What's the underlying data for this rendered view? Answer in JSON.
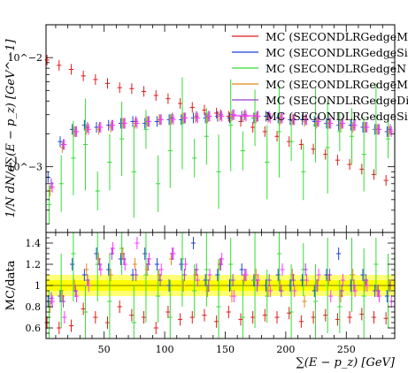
{
  "chart_data": {
    "type": "scatter",
    "xlabel": "∑(E − p_z) [GeV]",
    "upper": {
      "ylabel": "1/N dN/d∑(E − p_z) [GeV^−1]",
      "yscale": "log",
      "ylim": [
        0.00025,
        0.02
      ],
      "ytick_labels": [
        {
          "value": 0.01,
          "label": "10^−2"
        },
        {
          "value": 0.001,
          "label": "10^−3"
        }
      ]
    },
    "lower": {
      "ylabel": "MC/data",
      "ylim": [
        0.5,
        1.5
      ],
      "ytick_labels": [
        {
          "value": 0.6,
          "label": "0.6"
        },
        {
          "value": 0.8,
          "label": "0.8"
        },
        {
          "value": 1.0,
          "label": "1"
        },
        {
          "value": 1.2,
          "label": "1.2"
        },
        {
          "value": 1.4,
          "label": "1.4"
        }
      ],
      "band": {
        "low": 0.9,
        "high": 1.1,
        "inner_low": 0.95,
        "inner_high": 1.05,
        "color": "#ffff00"
      }
    },
    "xlim": [
      2,
      290
    ],
    "xtick_labels": [
      50,
      100,
      150,
      200,
      250
    ],
    "legend_position": "top-right",
    "series": [
      {
        "name": "MC (SECONDLRGedgeM",
        "color": "#e41a1c",
        "x": [
          5,
          15,
          25,
          35,
          45,
          55,
          65,
          75,
          85,
          95,
          105,
          115,
          125,
          135,
          145,
          155,
          165,
          175,
          185,
          195,
          205,
          215,
          225,
          235,
          245,
          255,
          265,
          275,
          285
        ],
        "y": [
          0.0095,
          0.0085,
          0.0078,
          0.0068,
          0.0063,
          0.0058,
          0.0053,
          0.0052,
          0.0049,
          0.0045,
          0.0042,
          0.0038,
          0.0035,
          0.0033,
          0.0031,
          0.0029,
          0.0026,
          0.0023,
          0.0021,
          0.0019,
          0.0017,
          0.0016,
          0.00145,
          0.0013,
          0.00115,
          0.00105,
          0.00095,
          0.00085,
          0.00075
        ],
        "ratio": [
          0.65,
          0.6,
          0.62,
          0.78,
          0.7,
          0.65,
          0.8,
          0.72,
          0.7,
          0.6,
          0.75,
          0.68,
          0.7,
          0.72,
          0.66,
          0.75,
          0.68,
          0.7,
          0.72,
          0.7,
          0.74,
          0.66,
          0.7,
          0.72,
          0.68,
          0.7,
          0.73,
          0.7,
          0.69
        ]
      },
      {
        "name": "MC (SECONDLRGedgeSi",
        "color": "#1f3fd8",
        "x": [
          5,
          15,
          25,
          35,
          45,
          55,
          65,
          75,
          85,
          95,
          105,
          115,
          125,
          135,
          145,
          155,
          165,
          175,
          185,
          195,
          205,
          215,
          225,
          235,
          245,
          255,
          265,
          275,
          285
        ],
        "y": [
          0.0008,
          0.0017,
          0.0022,
          0.0024,
          0.0023,
          0.0024,
          0.0025,
          0.0026,
          0.0025,
          0.0026,
          0.0027,
          0.0027,
          0.0028,
          0.0028,
          0.0029,
          0.0028,
          0.0029,
          0.0028,
          0.0029,
          0.0028,
          0.0027,
          0.0027,
          0.0026,
          0.0025,
          0.0024,
          0.0024,
          0.0023,
          0.0022,
          0.0021
        ],
        "ratio": [
          0.85,
          0.9,
          1.2,
          1.1,
          1.3,
          1.15,
          1.25,
          1.1,
          1.3,
          1.2,
          1.0,
          1.2,
          1.4,
          1.05,
          1.1,
          1.0,
          1.15,
          1.05,
          1.0,
          1.1,
          1.0,
          1.05,
          0.95,
          1.1,
          1.3,
          1.0,
          1.1,
          0.95,
          0.9
        ]
      },
      {
        "name": "MC (SECONDLRGedgeN",
        "color": "#33dd33",
        "x": [
          5,
          15,
          25,
          35,
          45,
          55,
          65,
          75,
          85,
          95,
          105,
          115,
          125,
          135,
          145,
          155,
          165,
          175,
          185,
          195,
          205,
          215,
          225,
          235,
          245,
          255,
          265,
          275,
          285
        ],
        "y": [
          0.00045,
          0.0007,
          0.0012,
          0.0016,
          0.0006,
          0.0011,
          0.0018,
          0.0009,
          0.0022,
          0.0007,
          0.0014,
          0.0025,
          0.0012,
          0.0019,
          0.0009,
          0.0024,
          0.0014,
          0.0028,
          0.0011,
          0.0021,
          0.0017,
          0.0009,
          0.0024,
          0.0015,
          0.0021,
          0.0019,
          0.0013,
          0.0022,
          0.0018
        ],
        "ratio": [
          0.7,
          0.95,
          1.3,
          0.75,
          1.2,
          0.85,
          1.35,
          0.65,
          1.1,
          0.9,
          0.7,
          1.25,
          0.95,
          1.15,
          0.8,
          1.2,
          0.7,
          1.05,
          0.9,
          1.3,
          0.75,
          1.15,
          0.85,
          1.0,
          0.8,
          1.1,
          0.9,
          1.2,
          0.95
        ]
      },
      {
        "name": "MC (SECONDLRGedgeM",
        "color": "#e08a1e",
        "x": [
          5,
          15,
          25,
          35,
          45,
          55,
          65,
          75,
          85,
          95,
          105,
          115,
          125,
          135,
          145,
          155,
          165,
          175,
          185,
          195,
          205,
          215,
          225,
          235,
          245,
          255,
          265,
          275,
          285
        ],
        "y": [
          0.0006,
          0.0015,
          0.0021,
          0.0022,
          0.0022,
          0.0023,
          0.0025,
          0.0025,
          0.0026,
          0.0027,
          0.0027,
          0.0028,
          0.0028,
          0.0028,
          0.0029,
          0.0029,
          0.0029,
          0.0028,
          0.0028,
          0.0027,
          0.0027,
          0.0026,
          0.0025,
          0.0025,
          0.0024,
          0.0023,
          0.0023,
          0.0022,
          0.0021
        ],
        "ratio": [
          0.8,
          0.9,
          1.0,
          1.15,
          1.25,
          1.1,
          1.3,
          1.2,
          1.15,
          1.1,
          1.25,
          1.0,
          1.1,
          0.95,
          1.2,
          0.9,
          1.05,
          1.1,
          0.95,
          1.0,
          1.1,
          0.85,
          1.0,
          1.05,
          0.9,
          1.1,
          1.0,
          0.95,
          1.0
        ]
      },
      {
        "name": "MC (SECONDLRGedgeDi",
        "color": "#9b3fcf",
        "x": [
          5,
          15,
          25,
          35,
          45,
          55,
          65,
          75,
          85,
          95,
          105,
          115,
          125,
          135,
          145,
          155,
          165,
          175,
          185,
          195,
          205,
          215,
          225,
          235,
          245,
          255,
          265,
          275,
          285
        ],
        "y": [
          0.0007,
          0.0016,
          0.0021,
          0.0023,
          0.0023,
          0.0024,
          0.0025,
          0.0026,
          0.0026,
          0.0027,
          0.0028,
          0.0028,
          0.0029,
          0.0029,
          0.003,
          0.003,
          0.003,
          0.0029,
          0.0029,
          0.0028,
          0.0027,
          0.0027,
          0.0026,
          0.0025,
          0.0025,
          0.0024,
          0.0023,
          0.0022,
          0.0022
        ],
        "ratio": [
          0.88,
          0.85,
          0.95,
          1.05,
          1.2,
          1.3,
          1.25,
          1.1,
          1.2,
          1.05,
          1.3,
          1.1,
          1.15,
          1.0,
          1.2,
          1.05,
          1.1,
          1.0,
          1.05,
          0.95,
          1.05,
          1.15,
          1.0,
          1.1,
          0.95,
          1.0,
          1.05,
          0.95,
          1.0
        ]
      },
      {
        "name": "MC (SECONDLRGedgeSi",
        "color": "#ff33ff",
        "x": [
          5,
          15,
          25,
          35,
          45,
          55,
          65,
          75,
          85,
          95,
          105,
          115,
          125,
          135,
          145,
          155,
          165,
          175,
          185,
          195,
          205,
          215,
          225,
          235,
          245,
          255,
          265,
          275,
          285
        ],
        "y": [
          0.00065,
          0.0016,
          0.0021,
          0.0022,
          0.0023,
          0.0024,
          0.0025,
          0.0025,
          0.0026,
          0.0027,
          0.0027,
          0.0028,
          0.0028,
          0.0029,
          0.0029,
          0.003,
          0.0029,
          0.0029,
          0.0028,
          0.0028,
          0.0027,
          0.0027,
          0.0026,
          0.0025,
          0.0025,
          0.0024,
          0.0023,
          0.0022,
          0.0021
        ],
        "ratio": [
          0.85,
          0.7,
          0.9,
          1.0,
          1.15,
          1.35,
          1.2,
          1.4,
          1.25,
          1.15,
          1.3,
          1.2,
          1.05,
          1.1,
          1.25,
          0.9,
          1.1,
          1.05,
          0.95,
          1.15,
          0.95,
          1.05,
          1.1,
          0.9,
          1.05,
          0.95,
          1.0,
          0.9,
          0.85
        ]
      }
    ]
  }
}
